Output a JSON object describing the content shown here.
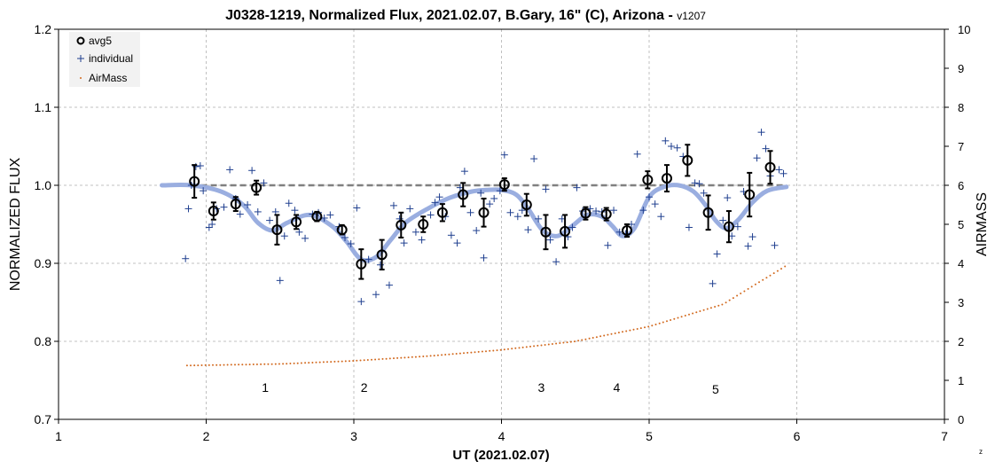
{
  "chart_data": {
    "type": "scatter",
    "title": "J0328-1219, Normalized Flux, 2021.02.07, B.Gary, 16\" (C), Arizona - ",
    "title_version": "v1207",
    "xlabel": "UT (2021.02.07)",
    "ylabel": "NORMALIZED FLUX",
    "y2label": "AIRMASS",
    "xlim": [
      1,
      7
    ],
    "ylim": [
      0.7,
      1.2
    ],
    "y2lim": [
      0,
      10
    ],
    "x_ticks": [
      "1",
      "2",
      "3",
      "4",
      "5",
      "6",
      "7"
    ],
    "y_ticks": [
      "0.7",
      "0.8",
      "0.9",
      "1.0",
      "1.1",
      "1.2"
    ],
    "y2_ticks": [
      "0",
      "1",
      "2",
      "3",
      "4",
      "5",
      "6",
      "7",
      "8",
      "9",
      "10"
    ],
    "grid": true,
    "legend_position": "top-left",
    "legend": [
      "avg5",
      "individual",
      "AirMass"
    ],
    "corner_mark": "z",
    "colors": {
      "avg5": "#000000",
      "individual": "#1f3f8f",
      "airmass": "#d2691e",
      "model": "#9aaee0",
      "baseline": "#808080",
      "grid": "#c0c0c0"
    },
    "annotations": [
      {
        "text": "1",
        "x": 2.4,
        "y": 0.735
      },
      {
        "text": "2",
        "x": 3.07,
        "y": 0.735
      },
      {
        "text": "3",
        "x": 4.27,
        "y": 0.735
      },
      {
        "text": "4",
        "x": 4.78,
        "y": 0.735
      },
      {
        "text": "5",
        "x": 5.45,
        "y": 0.733
      }
    ],
    "baseline": {
      "x": [
        1.7,
        5.93
      ],
      "y": 1.0
    },
    "model_curve": {
      "x": [
        1.7,
        1.9,
        2.1,
        2.25,
        2.35,
        2.45,
        2.55,
        2.7,
        2.85,
        2.95,
        3.05,
        3.15,
        3.25,
        3.35,
        3.5,
        3.65,
        3.8,
        3.9,
        4.0,
        4.1,
        4.18,
        4.28,
        4.38,
        4.48,
        4.58,
        4.68,
        4.75,
        4.82,
        4.9,
        5.0,
        5.1,
        5.2,
        5.3,
        5.38,
        5.45,
        5.52,
        5.6,
        5.7,
        5.8,
        5.93
      ],
      "y": [
        1.0,
        1.0,
        0.992,
        0.975,
        0.952,
        0.942,
        0.952,
        0.962,
        0.948,
        0.928,
        0.905,
        0.908,
        0.93,
        0.952,
        0.97,
        0.984,
        0.992,
        0.994,
        0.994,
        0.988,
        0.97,
        0.942,
        0.935,
        0.948,
        0.962,
        0.96,
        0.948,
        0.935,
        0.945,
        0.985,
        0.998,
        1.0,
        0.992,
        0.975,
        0.955,
        0.945,
        0.955,
        0.978,
        0.993,
        0.998
      ]
    },
    "avg5": [
      {
        "x": 1.92,
        "y": 1.005,
        "err": 0.021
      },
      {
        "x": 2.05,
        "y": 0.967,
        "err": 0.011
      },
      {
        "x": 2.2,
        "y": 0.976,
        "err": 0.009
      },
      {
        "x": 2.34,
        "y": 0.997,
        "err": 0.009
      },
      {
        "x": 2.48,
        "y": 0.943,
        "err": 0.019
      },
      {
        "x": 2.61,
        "y": 0.953,
        "err": 0.009
      },
      {
        "x": 2.75,
        "y": 0.96,
        "err": 0.006
      },
      {
        "x": 2.92,
        "y": 0.943,
        "err": 0.006
      },
      {
        "x": 3.05,
        "y": 0.899,
        "err": 0.019
      },
      {
        "x": 3.19,
        "y": 0.911,
        "err": 0.019
      },
      {
        "x": 3.32,
        "y": 0.949,
        "err": 0.016
      },
      {
        "x": 3.47,
        "y": 0.95,
        "err": 0.01
      },
      {
        "x": 3.6,
        "y": 0.965,
        "err": 0.011
      },
      {
        "x": 3.74,
        "y": 0.988,
        "err": 0.015
      },
      {
        "x": 3.88,
        "y": 0.965,
        "err": 0.018
      },
      {
        "x": 4.02,
        "y": 1.001,
        "err": 0.008
      },
      {
        "x": 4.17,
        "y": 0.975,
        "err": 0.014
      },
      {
        "x": 4.3,
        "y": 0.94,
        "err": 0.022
      },
      {
        "x": 4.43,
        "y": 0.941,
        "err": 0.021
      },
      {
        "x": 4.57,
        "y": 0.964,
        "err": 0.008
      },
      {
        "x": 4.71,
        "y": 0.963,
        "err": 0.008
      },
      {
        "x": 4.85,
        "y": 0.942,
        "err": 0.008
      },
      {
        "x": 4.99,
        "y": 1.007,
        "err": 0.011
      },
      {
        "x": 5.12,
        "y": 1.009,
        "err": 0.017
      },
      {
        "x": 5.26,
        "y": 1.032,
        "err": 0.02
      },
      {
        "x": 5.4,
        "y": 0.965,
        "err": 0.022
      },
      {
        "x": 5.54,
        "y": 0.947,
        "err": 0.02
      },
      {
        "x": 5.68,
        "y": 0.988,
        "err": 0.028
      },
      {
        "x": 5.82,
        "y": 1.023,
        "err": 0.021
      }
    ],
    "individual": [
      {
        "x": 1.86,
        "y": 0.906
      },
      {
        "x": 1.88,
        "y": 0.97
      },
      {
        "x": 1.9,
        "y": 1.0
      },
      {
        "x": 1.93,
        "y": 1.024
      },
      {
        "x": 1.96,
        "y": 1.025
      },
      {
        "x": 1.98,
        "y": 0.993
      },
      {
        "x": 2.02,
        "y": 0.946
      },
      {
        "x": 2.04,
        "y": 0.95
      },
      {
        "x": 2.07,
        "y": 0.97
      },
      {
        "x": 2.12,
        "y": 0.972
      },
      {
        "x": 2.16,
        "y": 1.02
      },
      {
        "x": 2.2,
        "y": 0.983
      },
      {
        "x": 2.23,
        "y": 0.963
      },
      {
        "x": 2.28,
        "y": 0.975
      },
      {
        "x": 2.31,
        "y": 1.019
      },
      {
        "x": 2.35,
        "y": 0.966
      },
      {
        "x": 2.39,
        "y": 1.003
      },
      {
        "x": 2.43,
        "y": 0.955
      },
      {
        "x": 2.47,
        "y": 0.966
      },
      {
        "x": 2.5,
        "y": 0.878
      },
      {
        "x": 2.53,
        "y": 0.935
      },
      {
        "x": 2.56,
        "y": 0.977
      },
      {
        "x": 2.6,
        "y": 0.968
      },
      {
        "x": 2.63,
        "y": 0.94
      },
      {
        "x": 2.67,
        "y": 0.932
      },
      {
        "x": 2.72,
        "y": 0.963
      },
      {
        "x": 2.76,
        "y": 0.965
      },
      {
        "x": 2.8,
        "y": 0.958
      },
      {
        "x": 2.84,
        "y": 0.962
      },
      {
        "x": 2.9,
        "y": 0.947
      },
      {
        "x": 2.94,
        "y": 0.933
      },
      {
        "x": 2.98,
        "y": 0.925
      },
      {
        "x": 3.02,
        "y": 0.971
      },
      {
        "x": 3.05,
        "y": 0.851
      },
      {
        "x": 3.1,
        "y": 0.905
      },
      {
        "x": 3.15,
        "y": 0.86
      },
      {
        "x": 3.18,
        "y": 0.898
      },
      {
        "x": 3.24,
        "y": 0.872
      },
      {
        "x": 3.27,
        "y": 0.974
      },
      {
        "x": 3.31,
        "y": 0.957
      },
      {
        "x": 3.34,
        "y": 0.926
      },
      {
        "x": 3.38,
        "y": 0.97
      },
      {
        "x": 3.42,
        "y": 0.94
      },
      {
        "x": 3.46,
        "y": 0.93
      },
      {
        "x": 3.52,
        "y": 0.962
      },
      {
        "x": 3.55,
        "y": 0.978
      },
      {
        "x": 3.58,
        "y": 0.985
      },
      {
        "x": 3.62,
        "y": 0.96
      },
      {
        "x": 3.66,
        "y": 0.936
      },
      {
        "x": 3.7,
        "y": 0.926
      },
      {
        "x": 3.72,
        "y": 0.997
      },
      {
        "x": 3.75,
        "y": 1.018
      },
      {
        "x": 3.79,
        "y": 0.965
      },
      {
        "x": 3.83,
        "y": 0.942
      },
      {
        "x": 3.86,
        "y": 0.99
      },
      {
        "x": 3.88,
        "y": 0.907
      },
      {
        "x": 3.92,
        "y": 0.976
      },
      {
        "x": 3.95,
        "y": 0.983
      },
      {
        "x": 3.99,
        "y": 0.993
      },
      {
        "x": 4.02,
        "y": 1.039
      },
      {
        "x": 4.06,
        "y": 0.965
      },
      {
        "x": 4.11,
        "y": 0.96
      },
      {
        "x": 4.14,
        "y": 0.968
      },
      {
        "x": 4.18,
        "y": 0.943
      },
      {
        "x": 4.22,
        "y": 1.034
      },
      {
        "x": 4.25,
        "y": 0.957
      },
      {
        "x": 4.3,
        "y": 0.995
      },
      {
        "x": 4.33,
        "y": 0.93
      },
      {
        "x": 4.37,
        "y": 0.902
      },
      {
        "x": 4.41,
        "y": 0.957
      },
      {
        "x": 4.45,
        "y": 0.934
      },
      {
        "x": 4.48,
        "y": 0.946
      },
      {
        "x": 4.51,
        "y": 0.997
      },
      {
        "x": 4.55,
        "y": 0.967
      },
      {
        "x": 4.6,
        "y": 0.97
      },
      {
        "x": 4.64,
        "y": 0.967
      },
      {
        "x": 4.68,
        "y": 0.966
      },
      {
        "x": 4.72,
        "y": 0.923
      },
      {
        "x": 4.76,
        "y": 0.968
      },
      {
        "x": 4.8,
        "y": 0.94
      },
      {
        "x": 4.84,
        "y": 0.938
      },
      {
        "x": 4.88,
        "y": 0.95
      },
      {
        "x": 4.92,
        "y": 1.04
      },
      {
        "x": 4.96,
        "y": 0.968
      },
      {
        "x": 5.0,
        "y": 0.985
      },
      {
        "x": 5.04,
        "y": 0.976
      },
      {
        "x": 5.08,
        "y": 0.96
      },
      {
        "x": 5.11,
        "y": 1.057
      },
      {
        "x": 5.15,
        "y": 1.05
      },
      {
        "x": 5.19,
        "y": 1.048
      },
      {
        "x": 5.23,
        "y": 1.037
      },
      {
        "x": 5.27,
        "y": 0.946
      },
      {
        "x": 5.31,
        "y": 1.003
      },
      {
        "x": 5.34,
        "y": 1.002
      },
      {
        "x": 5.37,
        "y": 0.99
      },
      {
        "x": 5.4,
        "y": 0.96
      },
      {
        "x": 5.43,
        "y": 0.874
      },
      {
        "x": 5.46,
        "y": 0.912
      },
      {
        "x": 5.5,
        "y": 0.955
      },
      {
        "x": 5.53,
        "y": 0.984
      },
      {
        "x": 5.56,
        "y": 0.935
      },
      {
        "x": 5.6,
        "y": 0.947
      },
      {
        "x": 5.64,
        "y": 0.992
      },
      {
        "x": 5.67,
        "y": 0.922
      },
      {
        "x": 5.7,
        "y": 0.934
      },
      {
        "x": 5.73,
        "y": 1.035
      },
      {
        "x": 5.76,
        "y": 1.068
      },
      {
        "x": 5.79,
        "y": 1.047
      },
      {
        "x": 5.82,
        "y": 1.012
      },
      {
        "x": 5.85,
        "y": 0.923
      },
      {
        "x": 5.88,
        "y": 1.02
      },
      {
        "x": 5.91,
        "y": 1.015
      }
    ],
    "airmass": {
      "x_start": 1.87,
      "x_end": 5.92,
      "step": 0.025,
      "model": "secant",
      "values_at": [
        {
          "x": 1.87,
          "y": 1.38
        },
        {
          "x": 2.5,
          "y": 1.42
        },
        {
          "x": 3.0,
          "y": 1.5
        },
        {
          "x": 3.5,
          "y": 1.62
        },
        {
          "x": 4.0,
          "y": 1.78
        },
        {
          "x": 4.5,
          "y": 2.0
        },
        {
          "x": 5.0,
          "y": 2.38
        },
        {
          "x": 5.5,
          "y": 2.95
        },
        {
          "x": 5.92,
          "y": 3.92
        }
      ]
    }
  }
}
